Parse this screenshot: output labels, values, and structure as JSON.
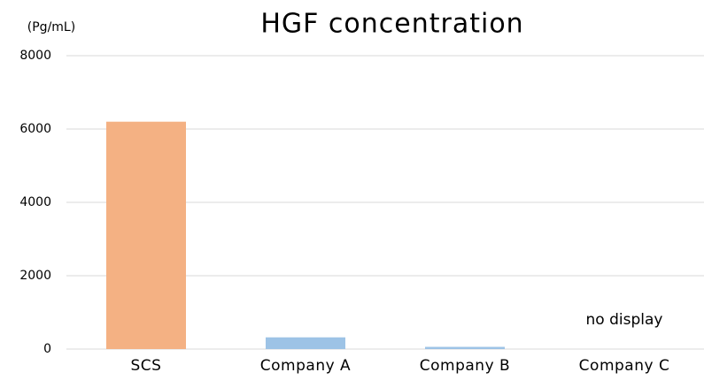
{
  "chart_data": {
    "type": "bar",
    "title": "HGF concentration",
    "y_label": "(Pg/mL)",
    "categories": [
      "SCS",
      "Company A",
      "Company B",
      "Company C"
    ],
    "values": [
      6200,
      320,
      60,
      null
    ],
    "colors": [
      "#f4b183",
      "#9dc3e6",
      "#9dc3e6",
      "#9dc3e6"
    ],
    "annotation": "no display",
    "ylim": [
      0,
      8000
    ],
    "yticks": [
      0,
      2000,
      4000,
      6000,
      8000
    ],
    "grid": true
  }
}
